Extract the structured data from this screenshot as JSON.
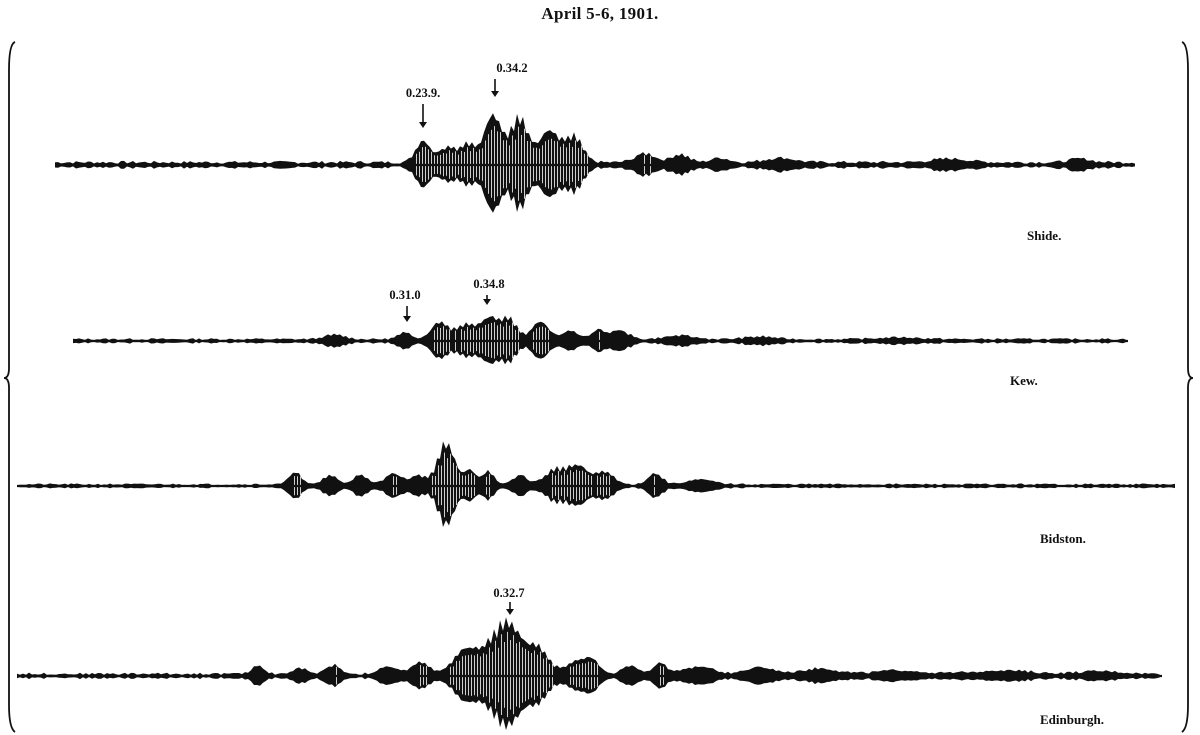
{
  "title": "April 5-6, 1901.",
  "records": [
    {
      "station": "Shide.",
      "annotations": [
        {
          "label": "0.23.9."
        },
        {
          "label": "0.34.2"
        }
      ]
    },
    {
      "station": "Kew.",
      "annotations": [
        {
          "label": "0.31.0"
        },
        {
          "label": "0.34.8"
        }
      ]
    },
    {
      "station": "Bidston.",
      "annotations": []
    },
    {
      "station": "Edinburgh.",
      "annotations": [
        {
          "label": "0.32.7"
        }
      ]
    }
  ],
  "colors": {
    "ink": "#111111",
    "paper": "#ffffff"
  }
}
